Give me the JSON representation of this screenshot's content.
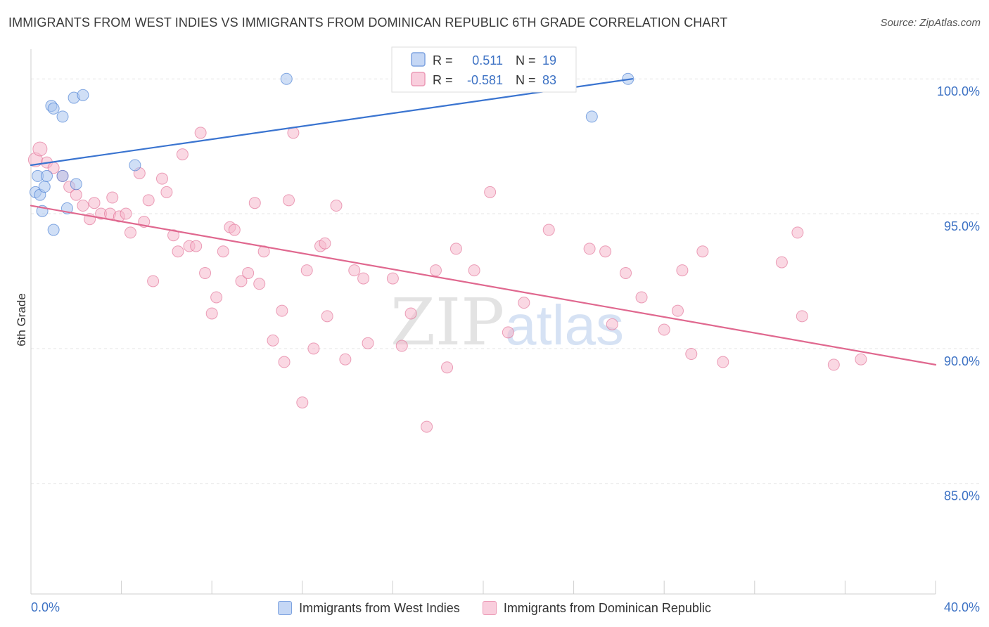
{
  "title": "IMMIGRANTS FROM WEST INDIES VS IMMIGRANTS FROM DOMINICAN REPUBLIC 6TH GRADE CORRELATION CHART",
  "source": "Source: ZipAtlas.com",
  "watermark": {
    "zip": "ZIP",
    "atlas": "atlas"
  },
  "colors": {
    "blue": "#3a74d0",
    "blue_fill": "#a9c4ee",
    "pink": "#e0688f",
    "pink_fill": "#f5b8cc",
    "axis_label": "#3d72c4"
  },
  "legend": {
    "rows": [
      {
        "r_label": "R =",
        "r_value": "0.511",
        "n_label": "N =",
        "n_value": "19"
      },
      {
        "r_label": "R =",
        "r_value": "-0.581",
        "n_label": "N =",
        "n_value": "83"
      }
    ]
  },
  "bottom_legend": [
    "Immigrants from West Indies",
    "Immigrants from Dominican Republic"
  ],
  "chart_data": {
    "type": "scatter",
    "xlabel": "",
    "ylabel": "6th Grade",
    "xlim": [
      0,
      40
    ],
    "ylim": [
      80.9,
      101.1
    ],
    "x_tick_labels": [
      {
        "value": 0,
        "label": "0.0%"
      },
      {
        "value": 40,
        "label": "40.0%"
      }
    ],
    "y_tick_labels": [
      {
        "value": 100,
        "label": "100.0%"
      },
      {
        "value": 95,
        "label": "95.0%"
      },
      {
        "value": 90,
        "label": "90.0%"
      },
      {
        "value": 85,
        "label": "85.0%"
      }
    ],
    "grid": true,
    "series": [
      {
        "name": "Immigrants from West Indies",
        "color": "#3a74d0",
        "trend": {
          "x": [
            0,
            26.6
          ],
          "y": [
            96.8,
            100.0
          ]
        },
        "points": [
          [
            0.3,
            96.4
          ],
          [
            0.2,
            95.8
          ],
          [
            0.4,
            95.7
          ],
          [
            0.6,
            96.0
          ],
          [
            0.7,
            96.4
          ],
          [
            0.5,
            95.1
          ],
          [
            0.9,
            99.0
          ],
          [
            1.0,
            98.9
          ],
          [
            1.4,
            98.6
          ],
          [
            1.9,
            99.3
          ],
          [
            2.3,
            99.4
          ],
          [
            1.4,
            96.4
          ],
          [
            2.0,
            96.1
          ],
          [
            1.6,
            95.2
          ],
          [
            1.0,
            94.4
          ],
          [
            4.6,
            96.8
          ],
          [
            11.3,
            100.0
          ],
          [
            26.4,
            100.0
          ],
          [
            24.8,
            98.6
          ]
        ]
      },
      {
        "name": "Immigrants from Dominican Republic",
        "color": "#e0688f",
        "trend": {
          "x": [
            0,
            40
          ],
          "y": [
            95.3,
            89.4
          ]
        },
        "points": [
          [
            0.2,
            97.0
          ],
          [
            0.4,
            97.4
          ],
          [
            0.7,
            96.9
          ],
          [
            1.0,
            96.7
          ],
          [
            1.4,
            96.4
          ],
          [
            1.7,
            96.0
          ],
          [
            2.0,
            95.7
          ],
          [
            2.3,
            95.3
          ],
          [
            2.6,
            94.8
          ],
          [
            2.8,
            95.4
          ],
          [
            3.1,
            95.0
          ],
          [
            3.5,
            95.0
          ],
          [
            3.6,
            95.6
          ],
          [
            3.9,
            94.9
          ],
          [
            4.2,
            95.0
          ],
          [
            4.4,
            94.3
          ],
          [
            4.8,
            96.5
          ],
          [
            5.0,
            94.7
          ],
          [
            5.2,
            95.5
          ],
          [
            5.4,
            92.5
          ],
          [
            5.8,
            96.3
          ],
          [
            6.0,
            95.8
          ],
          [
            6.3,
            94.2
          ],
          [
            6.5,
            93.6
          ],
          [
            6.7,
            97.2
          ],
          [
            7.0,
            93.8
          ],
          [
            7.3,
            93.8
          ],
          [
            7.5,
            98.0
          ],
          [
            7.7,
            92.8
          ],
          [
            8.0,
            91.3
          ],
          [
            8.2,
            91.9
          ],
          [
            8.5,
            93.6
          ],
          [
            8.8,
            94.5
          ],
          [
            9.0,
            94.4
          ],
          [
            9.3,
            92.5
          ],
          [
            9.6,
            92.8
          ],
          [
            9.9,
            95.4
          ],
          [
            10.1,
            92.4
          ],
          [
            10.3,
            93.6
          ],
          [
            10.7,
            90.3
          ],
          [
            11.1,
            91.4
          ],
          [
            11.2,
            89.5
          ],
          [
            11.4,
            95.5
          ],
          [
            11.6,
            98.0
          ],
          [
            12.0,
            88.0
          ],
          [
            12.2,
            92.9
          ],
          [
            12.5,
            90.0
          ],
          [
            12.8,
            93.8
          ],
          [
            13.0,
            93.9
          ],
          [
            13.1,
            91.2
          ],
          [
            13.5,
            95.3
          ],
          [
            13.9,
            89.6
          ],
          [
            14.3,
            92.9
          ],
          [
            14.7,
            92.6
          ],
          [
            14.9,
            90.2
          ],
          [
            16.0,
            92.6
          ],
          [
            16.4,
            90.1
          ],
          [
            16.8,
            91.3
          ],
          [
            17.5,
            87.1
          ],
          [
            17.9,
            92.9
          ],
          [
            18.4,
            89.3
          ],
          [
            18.8,
            93.7
          ],
          [
            19.6,
            92.9
          ],
          [
            20.3,
            95.8
          ],
          [
            21.1,
            90.6
          ],
          [
            21.8,
            91.7
          ],
          [
            22.9,
            94.4
          ],
          [
            24.7,
            93.7
          ],
          [
            25.4,
            93.6
          ],
          [
            25.7,
            90.9
          ],
          [
            26.3,
            92.8
          ],
          [
            27.0,
            91.9
          ],
          [
            28.0,
            90.7
          ],
          [
            28.6,
            91.4
          ],
          [
            28.8,
            92.9
          ],
          [
            29.2,
            89.8
          ],
          [
            30.6,
            89.5
          ],
          [
            33.2,
            93.2
          ],
          [
            33.9,
            94.3
          ],
          [
            34.1,
            91.2
          ],
          [
            35.5,
            89.4
          ],
          [
            36.7,
            89.6
          ],
          [
            29.7,
            93.6
          ]
        ]
      }
    ]
  }
}
